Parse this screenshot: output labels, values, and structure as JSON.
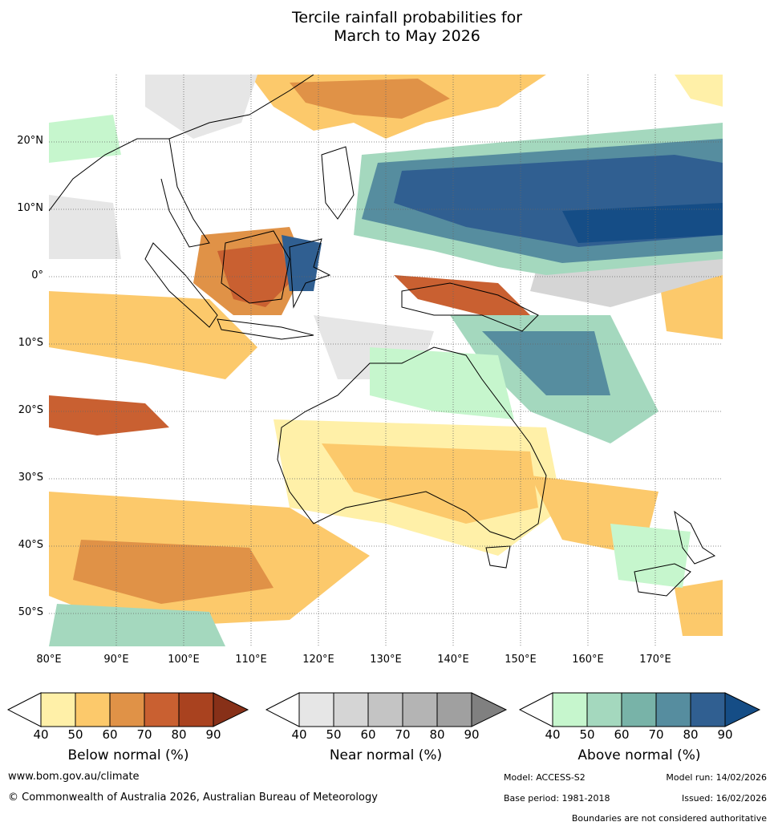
{
  "title_line1": "Tercile rainfall probabilities for",
  "title_line2": "March to May 2026",
  "map": {
    "lat_labels": [
      "20°N",
      "10°N",
      "0°",
      "10°S",
      "20°S",
      "30°S",
      "40°S",
      "50°S"
    ],
    "lon_labels": [
      "80°E",
      "90°E",
      "100°E",
      "110°E",
      "120°E",
      "130°E",
      "140°E",
      "150°E",
      "160°E",
      "170°E"
    ],
    "colors": {
      "below": [
        "#fff0a8",
        "#fcc96b",
        "#e09247",
        "#c96031",
        "#a9421f",
        "#873018"
      ],
      "near": [
        "#e6e6e6",
        "#d5d5d5",
        "#c4c4c4",
        "#b4b4b4",
        "#a0a0a0",
        "#808080"
      ],
      "above": [
        "#c6f6cd",
        "#a4d8be",
        "#78b3a8",
        "#568d9f",
        "#305f91",
        "#154d86"
      ]
    }
  },
  "colorbars": [
    {
      "name": "below",
      "ticks": [
        "40",
        "50",
        "60",
        "70",
        "80",
        "90"
      ],
      "label": "Below normal (%)"
    },
    {
      "name": "near",
      "ticks": [
        "40",
        "50",
        "60",
        "70",
        "80",
        "90"
      ],
      "label": "Near normal (%)"
    },
    {
      "name": "above",
      "ticks": [
        "40",
        "50",
        "60",
        "70",
        "80",
        "90"
      ],
      "label": "Above normal (%)"
    }
  ],
  "footer": {
    "website": "www.bom.gov.au/climate",
    "copyright": "© Commonwealth of Australia 2026, Australian Bureau of Meteorology",
    "model": "Model: ACCESS-S2",
    "model_run": "Model run: 14/02/2026",
    "base_period": "Base period: 1981-2018",
    "issued": "Issued: 16/02/2026",
    "boundaries": "Boundaries are not considered authoritative"
  }
}
